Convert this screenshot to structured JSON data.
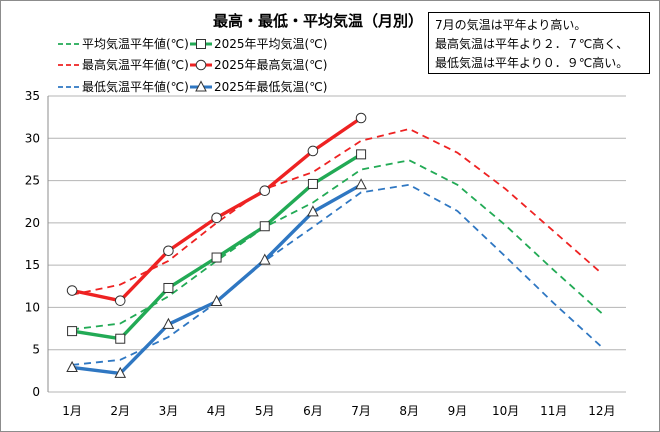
{
  "chart_data": {
    "type": "line",
    "title": "最高・最低・平均気温（月別）",
    "categories": [
      "1月",
      "2月",
      "3月",
      "4月",
      "5月",
      "6月",
      "7月",
      "8月",
      "9月",
      "10月",
      "11月",
      "12月"
    ],
    "ylim": [
      0,
      35
    ],
    "yticks": [
      0,
      5,
      10,
      15,
      20,
      25,
      30,
      35
    ],
    "grid": true,
    "legend_position": "top-left",
    "series": [
      {
        "name": "平均気温平年値(℃)",
        "color": "#22aa55",
        "style": "dashed",
        "marker": "none",
        "values": [
          7.4,
          8.1,
          11.3,
          15.5,
          19.5,
          22.4,
          26.3,
          27.4,
          24.5,
          19.7,
          14.4,
          9.3
        ]
      },
      {
        "name": "2025年平均気温(℃)",
        "color": "#22aa55",
        "style": "solid",
        "marker": "square",
        "values": [
          7.2,
          6.3,
          12.3,
          15.9,
          19.6,
          24.6,
          28.1,
          null,
          null,
          null,
          null,
          null
        ]
      },
      {
        "name": "最高気温平年値(℃)",
        "color": "#ee2222",
        "style": "dashed",
        "marker": "none",
        "values": [
          11.5,
          12.7,
          15.5,
          20.0,
          24.0,
          26.0,
          29.7,
          31.1,
          28.3,
          24.0,
          19.0,
          14.0
        ]
      },
      {
        "name": "2025年最高気温(℃)",
        "color": "#ee2222",
        "style": "solid",
        "marker": "circle",
        "values": [
          12.0,
          10.8,
          16.7,
          20.6,
          23.8,
          28.5,
          32.4,
          null,
          null,
          null,
          null,
          null
        ]
      },
      {
        "name": "最低気温平年値(℃)",
        "color": "#2f77c2",
        "style": "dashed",
        "marker": "none",
        "values": [
          3.2,
          3.8,
          6.5,
          10.6,
          15.5,
          19.5,
          23.6,
          24.5,
          21.4,
          16.0,
          10.5,
          5.3
        ]
      },
      {
        "name": "2025年最低気温(℃)",
        "color": "#2f77c2",
        "style": "solid",
        "marker": "triangle",
        "values": [
          2.9,
          2.2,
          8.0,
          10.7,
          15.6,
          21.3,
          24.5,
          null,
          null,
          null,
          null,
          null
        ]
      }
    ]
  },
  "annotation": {
    "lines": [
      "7月の気温は平年より高い。",
      "最高気温は平年より２．７℃高く、",
      "最低気温は平年より０．９℃高い。"
    ]
  }
}
